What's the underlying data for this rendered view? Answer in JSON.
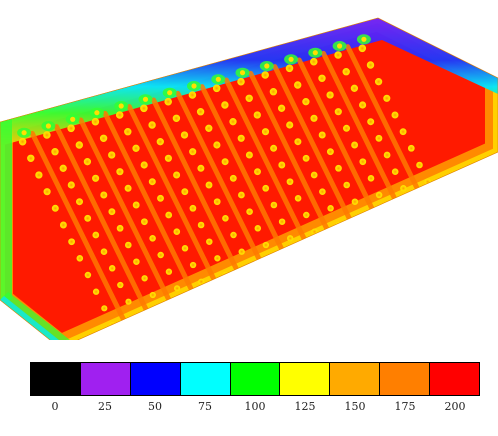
{
  "legend": {
    "bins": [
      {
        "label": "0",
        "color": "#000000"
      },
      {
        "label": "25",
        "color": "#a020f0"
      },
      {
        "label": "50",
        "color": "#0000ff"
      },
      {
        "label": "75",
        "color": "#00ffff"
      },
      {
        "label": "100",
        "color": "#00ff00"
      },
      {
        "label": "125",
        "color": "#ffff00"
      },
      {
        "label": "150",
        "color": "#ffaa00"
      },
      {
        "label": "175",
        "color": "#ff7f00"
      },
      {
        "label": "200",
        "color": "#ff0000"
      }
    ]
  },
  "scene": {
    "colors": {
      "plate": "#ff1a00",
      "band": "#ff7a00",
      "edge_warm": "#ffd000",
      "edge_green": "#33ff33",
      "edge_cyan": "#00e6ff",
      "edge_blue": "#1a33ff",
      "edge_purple": "#7a1aff",
      "dot_ring": "#ffe000",
      "dot_core": "#ff9a00"
    }
  }
}
